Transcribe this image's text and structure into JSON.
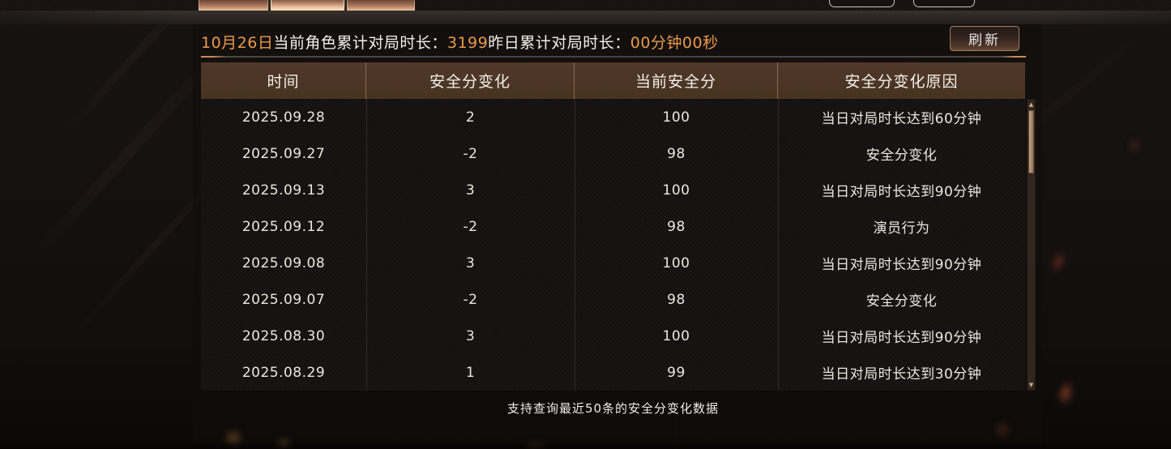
{
  "colors": {
    "accent_orange": "#e99a4e",
    "text_white": "#f3efe9",
    "table_header_bg": "#4b3427",
    "copper_tab": "#c89274"
  },
  "session": {
    "date": "10月26日",
    "today_label": "当前角色累计对局时长：",
    "today_value": "3199",
    "yesterday_label": "昨日累计对局时长：",
    "yesterday_value": "00分钟00秒",
    "refresh_label": "刷新"
  },
  "table": {
    "columns": [
      "时间",
      "安全分变化",
      "当前安全分",
      "安全分变化原因"
    ],
    "rows": [
      {
        "date": "2025.09.28",
        "change": "2",
        "score": "100",
        "reason": "当日对局时长达到60分钟"
      },
      {
        "date": "2025.09.27",
        "change": "-2",
        "score": "98",
        "reason": "安全分变化"
      },
      {
        "date": "2025.09.13",
        "change": "3",
        "score": "100",
        "reason": "当日对局时长达到90分钟"
      },
      {
        "date": "2025.09.12",
        "change": "-2",
        "score": "98",
        "reason": "演员行为"
      },
      {
        "date": "2025.09.08",
        "change": "3",
        "score": "100",
        "reason": "当日对局时长达到90分钟"
      },
      {
        "date": "2025.09.07",
        "change": "-2",
        "score": "98",
        "reason": "安全分变化"
      },
      {
        "date": "2025.08.30",
        "change": "3",
        "score": "100",
        "reason": "当日对局时长达到90分钟"
      },
      {
        "date": "2025.08.29",
        "change": "1",
        "score": "99",
        "reason": "当日对局时长达到30分钟"
      }
    ]
  },
  "scrollbar": {
    "up_icon": "▲",
    "down_icon": "▼"
  },
  "footer": {
    "note": "支持查询最近50条的安全分变化数据"
  }
}
